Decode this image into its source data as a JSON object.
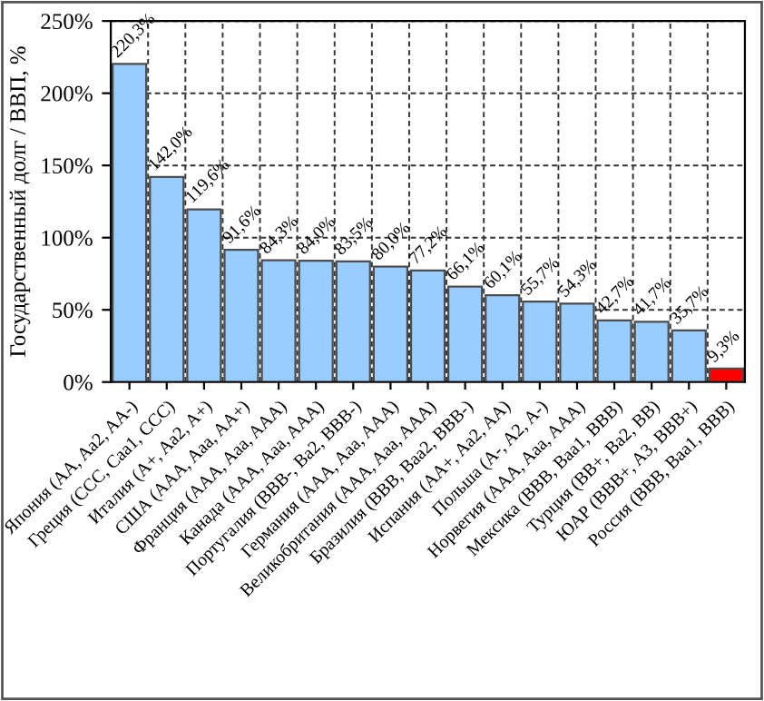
{
  "chart_data": {
    "type": "bar",
    "ylabel": "Государственный долг / ВВП, %",
    "categories": [
      "Япония (AA, Aa2, AA-)",
      "Греция (CCC, Caa1, CCC)",
      "Италия (A+, Aa2, A+)",
      "США (AAA, Aaa, AA+)",
      "Франция (AAA, Aaa, AAA)",
      "Канада (AAA, Aaa, AAA)",
      "Португалия (BBB-, Ba2, BBB-)",
      "Германия (AAA, Aaa, AAA)",
      "Великобритания (AAA, Aaa, AAA)",
      "Бразилия (BBB, Baa2, BBB-)",
      "Испания (AA+, Aa2, AA)",
      "Польша (A-, A2, A-)",
      "Норвегия (AAA, Aaa, AAA)",
      "Мексика (BBB, Baa1, BBB)",
      "Турция (BB+, Ba2, BB)",
      "ЮАР (BBB+, A3, BBB+)",
      "Россия (BBB, Baa1, BBB)"
    ],
    "values": [
      220.3,
      142.0,
      119.6,
      91.6,
      84.3,
      84.0,
      83.5,
      80.0,
      77.2,
      66.1,
      60.1,
      55.7,
      54.3,
      42.7,
      41.7,
      35.7,
      9.3
    ],
    "colors": [
      "#99ccff",
      "#99ccff",
      "#99ccff",
      "#99ccff",
      "#99ccff",
      "#99ccff",
      "#99ccff",
      "#99ccff",
      "#99ccff",
      "#99ccff",
      "#99ccff",
      "#99ccff",
      "#99ccff",
      "#99ccff",
      "#99ccff",
      "#99ccff",
      "#ff0000"
    ],
    "value_labels": [
      "220,3%",
      "142,0%",
      "119,6%",
      "91,6%",
      "84,3%",
      "84,0%",
      "83,5%",
      "80,0%",
      "77,2%",
      "66,1%",
      "60,1%",
      "55,7%",
      "54,3%",
      "42,7%",
      "41,7%",
      "35,7%",
      "9,3%"
    ],
    "ylim": [
      0,
      250
    ],
    "yticks": [
      {
        "value": 0,
        "label": "0%"
      },
      {
        "value": 50,
        "label": "50%"
      },
      {
        "value": 100,
        "label": "100%"
      },
      {
        "value": 150,
        "label": "150%"
      },
      {
        "value": 200,
        "label": "200%"
      },
      {
        "value": 250,
        "label": "250%"
      }
    ],
    "grid": true
  }
}
